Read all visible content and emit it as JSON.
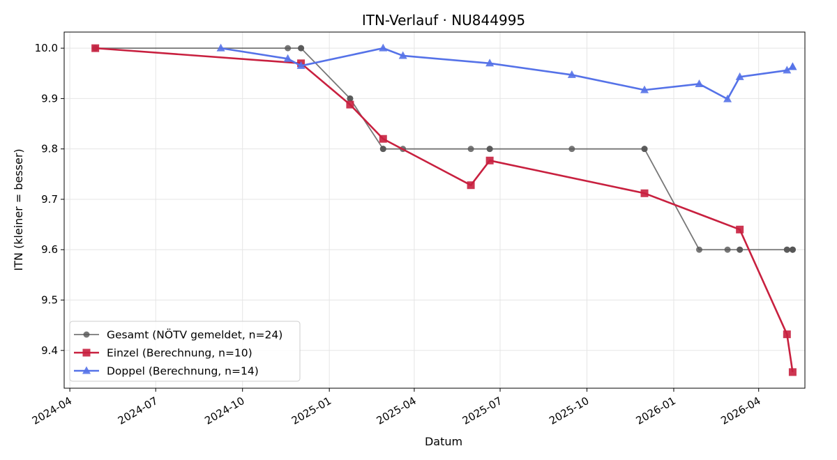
{
  "chart_data": {
    "type": "line",
    "title": "ITN-Verlauf · NU844995",
    "xlabel": "Datum",
    "ylabel": "ITN  (kleiner = besser)",
    "ylim": [
      9.325,
      10.032
    ],
    "xlim": [
      "2024-03-26",
      "2026-05-20"
    ],
    "x_ticks": [
      "2024-04",
      "2024-07",
      "2024-10",
      "2025-01",
      "2025-04",
      "2025-07",
      "2025-10",
      "2026-01",
      "2026-04"
    ],
    "y_ticks": [
      "9.4",
      "9.5",
      "9.6",
      "9.7",
      "9.8",
      "9.9",
      "10.0"
    ],
    "grid": true,
    "legend_position": "lower-left",
    "series": [
      {
        "name": "Gesamt (NÖTV gemeldet, n=24)",
        "color": "#555555",
        "marker": "circle",
        "points": [
          [
            "2024-04-28",
            10.0
          ],
          [
            "2024-11-18",
            10.0
          ],
          [
            "2024-12-02",
            10.0
          ],
          [
            "2024-12-02",
            10.0
          ],
          [
            "2025-01-23",
            9.9
          ],
          [
            "2025-01-23",
            9.9
          ],
          [
            "2025-02-27",
            9.8
          ],
          [
            "2025-02-27",
            9.8
          ],
          [
            "2025-03-20",
            9.8
          ],
          [
            "2025-05-31",
            9.8
          ],
          [
            "2025-06-20",
            9.8
          ],
          [
            "2025-06-20",
            9.8
          ],
          [
            "2025-09-15",
            9.8
          ],
          [
            "2025-12-01",
            9.8
          ],
          [
            "2025-12-01",
            9.8
          ],
          [
            "2026-01-28",
            9.6
          ],
          [
            "2026-02-27",
            9.6
          ],
          [
            "2026-03-12",
            9.6
          ],
          [
            "2026-03-12",
            9.6
          ],
          [
            "2026-05-01",
            9.6
          ],
          [
            "2026-05-01",
            9.6
          ],
          [
            "2026-05-07",
            9.6
          ],
          [
            "2026-05-07",
            9.6
          ],
          [
            "2026-05-07",
            9.6
          ]
        ]
      },
      {
        "name": "Einzel (Berechnung, n=10)",
        "color": "#c8203f",
        "marker": "square",
        "points": [
          [
            "2024-04-28",
            10.0
          ],
          [
            "2024-12-02",
            9.97
          ],
          [
            "2025-01-23",
            9.888
          ],
          [
            "2025-02-27",
            9.82
          ],
          [
            "2025-05-31",
            9.728
          ],
          [
            "2025-06-20",
            9.777
          ],
          [
            "2025-12-01",
            9.712
          ],
          [
            "2026-03-12",
            9.64
          ],
          [
            "2026-05-01",
            9.432
          ],
          [
            "2026-05-07",
            9.357
          ]
        ]
      },
      {
        "name": "Doppel (Berechnung, n=14)",
        "color": "#5572e8",
        "marker": "triangle",
        "points": [
          [
            "2024-09-08",
            10.0
          ],
          [
            "2024-11-18",
            9.979
          ],
          [
            "2024-12-02",
            9.965
          ],
          [
            "2025-02-27",
            10.0
          ],
          [
            "2025-03-20",
            9.985
          ],
          [
            "2025-06-20",
            9.97
          ],
          [
            "2025-09-15",
            9.947
          ],
          [
            "2025-12-01",
            9.917
          ],
          [
            "2026-01-28",
            9.929
          ],
          [
            "2026-02-27",
            9.899
          ],
          [
            "2026-03-12",
            9.943
          ],
          [
            "2026-05-01",
            9.956
          ],
          [
            "2026-05-07",
            9.963
          ],
          [
            "2026-05-07",
            9.963
          ]
        ]
      }
    ]
  }
}
